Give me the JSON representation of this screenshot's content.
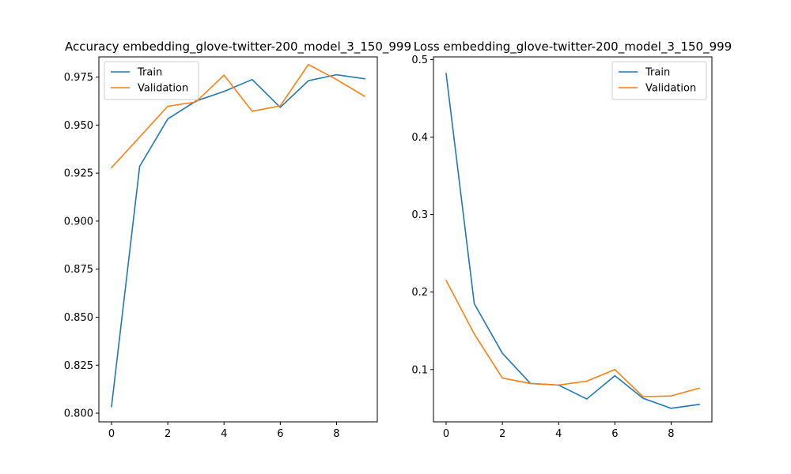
{
  "chart_data": [
    {
      "type": "line",
      "title": "Accuracy embedding_glove-twitter-200_model_3_150_999",
      "xlabel": "",
      "ylabel": "",
      "x": [
        0,
        1,
        2,
        3,
        4,
        5,
        6,
        7,
        8,
        9
      ],
      "xlim": [
        -0.45,
        9.45
      ],
      "ylim": [
        0.7955,
        0.9855
      ],
      "xticks": [
        0,
        2,
        4,
        6,
        8
      ],
      "yticks": [
        0.8,
        0.825,
        0.85,
        0.875,
        0.9,
        0.925,
        0.95,
        0.975
      ],
      "ytick_labels": [
        "0.800",
        "0.825",
        "0.850",
        "0.875",
        "0.900",
        "0.925",
        "0.950",
        "0.975"
      ],
      "grid": false,
      "legend": "top-left",
      "series": [
        {
          "name": "Train",
          "color": "#1f77b4",
          "values": [
            0.8035,
            0.9285,
            0.9532,
            0.9625,
            0.9675,
            0.9737,
            0.9592,
            0.9731,
            0.9762,
            0.9741
          ]
        },
        {
          "name": "Validation",
          "color": "#ff7f0e",
          "values": [
            0.9278,
            0.9438,
            0.9598,
            0.962,
            0.976,
            0.9572,
            0.96,
            0.9815,
            0.9737,
            0.965
          ]
        }
      ]
    },
    {
      "type": "line",
      "title": "Loss embedding_glove-twitter-200_model_3_150_999",
      "xlabel": "",
      "ylabel": "",
      "x": [
        0,
        1,
        2,
        3,
        4,
        5,
        6,
        7,
        8,
        9
      ],
      "xlim": [
        -0.45,
        9.45
      ],
      "ylim": [
        0.0325,
        0.5035
      ],
      "xticks": [
        0,
        2,
        4,
        6,
        8
      ],
      "yticks": [
        0.1,
        0.2,
        0.3,
        0.4,
        0.5
      ],
      "ytick_labels": [
        "0.1",
        "0.2",
        "0.3",
        "0.4",
        "0.5"
      ],
      "grid": false,
      "legend": "top-right",
      "series": [
        {
          "name": "Train",
          "color": "#1f77b4",
          "values": [
            0.482,
            0.185,
            0.121,
            0.082,
            0.08,
            0.062,
            0.092,
            0.063,
            0.05,
            0.055
          ]
        },
        {
          "name": "Validation",
          "color": "#ff7f0e",
          "values": [
            0.215,
            0.146,
            0.089,
            0.082,
            0.08,
            0.085,
            0.1,
            0.065,
            0.066,
            0.076
          ]
        }
      ]
    }
  ]
}
